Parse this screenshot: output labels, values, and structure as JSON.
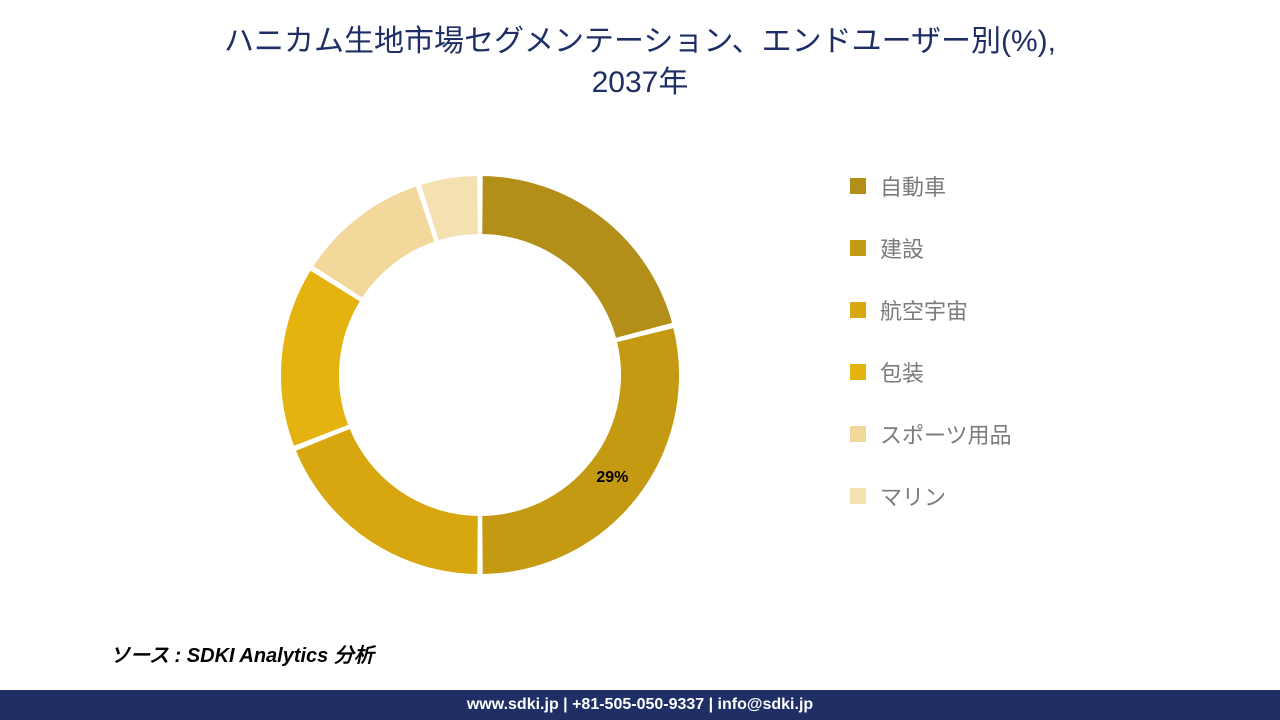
{
  "title": {
    "line1": "ハニカム生地市場セグメンテーション、エンドユーザー別(%),",
    "line2": "2037年",
    "color": "#1f2f66",
    "fontsize": 30
  },
  "chart": {
    "type": "donut",
    "inner_radius_ratio": 0.7,
    "start_angle_deg": 90,
    "direction": "clockwise",
    "gap_deg": 1.0,
    "background_color": "#ffffff",
    "stroke_color": "#ffffff",
    "stroke_width": 2,
    "segments": [
      {
        "label": "自動車",
        "value": 21,
        "color": "#b38f1a"
      },
      {
        "label": "建設",
        "value": 29,
        "color": "#c49a13"
      },
      {
        "label": "航空宇宙",
        "value": 19,
        "color": "#d8a60e"
      },
      {
        "label": "包装",
        "value": 15,
        "color": "#e5b30f"
      },
      {
        "label": "スポーツ用品",
        "value": 11,
        "color": "#f2d89b"
      },
      {
        "label": "マリン",
        "value": 5,
        "color": "#f5e0b2"
      }
    ],
    "data_label": {
      "text": "29%",
      "segment_index": 1,
      "fontsize": 16,
      "fontweight": 700,
      "color": "#000000"
    }
  },
  "legend": {
    "fontsize": 22,
    "text_color": "#7b7b7b",
    "swatch_size": 16,
    "items": [
      {
        "label": "自動車",
        "color": "#b38f1a"
      },
      {
        "label": "建設",
        "color": "#c49a13"
      },
      {
        "label": "航空宇宙",
        "color": "#d8a60e"
      },
      {
        "label": "包装",
        "color": "#e5b30f"
      },
      {
        "label": "スポーツ用品",
        "color": "#f2d89b"
      },
      {
        "label": "マリン",
        "color": "#f5e0b2"
      }
    ]
  },
  "source": {
    "prefix": "ソース : ",
    "text": "SDKI Analytics 分析"
  },
  "footer": {
    "text": "www.sdki.jp | +81-505-050-9337 | info@sdki.jp",
    "bg_color": "#1f2f66",
    "text_color": "#ffffff"
  }
}
